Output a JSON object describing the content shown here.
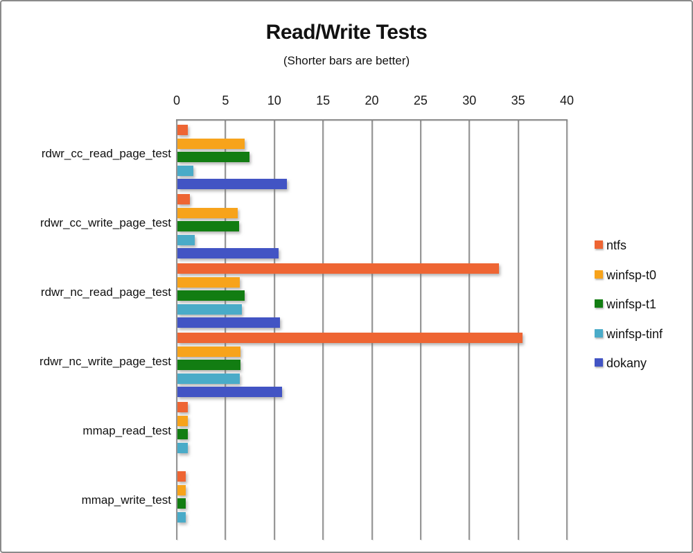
{
  "chart_data": {
    "type": "bar",
    "orientation": "horizontal",
    "title": "Read/Write Tests",
    "subtitle": "(Shorter bars are better)",
    "categories": [
      "rdwr_cc_read_page_test",
      "rdwr_cc_write_page_test",
      "rdwr_nc_read_page_test",
      "rdwr_nc_write_page_test",
      "mmap_read_test",
      "mmap_write_test"
    ],
    "series": [
      {
        "name": "ntfs",
        "color": "#EE6533",
        "values": [
          1.1,
          1.3,
          33.0,
          35.4,
          1.1,
          0.85
        ]
      },
      {
        "name": "winfsp-t0",
        "color": "#F7A31B",
        "values": [
          6.9,
          6.2,
          6.4,
          6.5,
          1.05,
          0.85
        ]
      },
      {
        "name": "winfsp-t1",
        "color": "#127D12",
        "values": [
          7.4,
          6.3,
          6.9,
          6.5,
          1.05,
          0.85
        ]
      },
      {
        "name": "winfsp-tinf",
        "color": "#4AABC8",
        "values": [
          1.6,
          1.8,
          6.6,
          6.4,
          1.05,
          0.85
        ]
      },
      {
        "name": "dokany",
        "color": "#4254C4",
        "values": [
          11.2,
          10.4,
          10.5,
          10.7,
          0,
          0
        ]
      }
    ],
    "x_ticks": [
      0,
      5,
      10,
      15,
      20,
      25,
      30,
      35,
      40
    ],
    "xlim": [
      0,
      40
    ],
    "grid": "vertical",
    "legend_position": "right",
    "colors": {
      "grid_line": "#979797",
      "axis_text": "#1a1a1a",
      "frame_border": "#8a8a8a"
    }
  }
}
